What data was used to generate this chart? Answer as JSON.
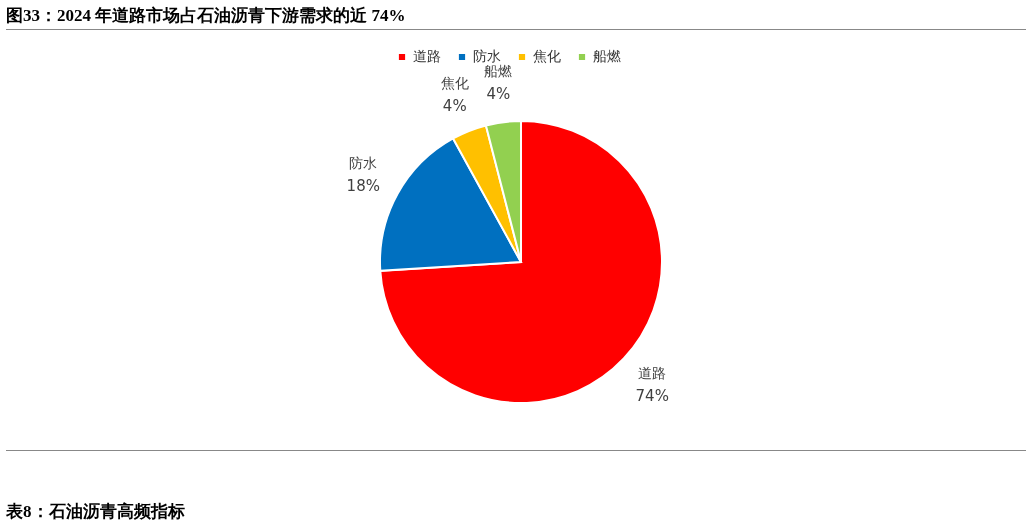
{
  "chart_data": {
    "type": "pie",
    "title": "图33：2024 年道路市场占石油沥青下游需求的近 74%",
    "categories": [
      "道路",
      "防水",
      "焦化",
      "船燃"
    ],
    "values": [
      74,
      18,
      4,
      4
    ],
    "colors": [
      "#ff0000",
      "#0070c0",
      "#ffc000",
      "#92d050"
    ],
    "value_labels": [
      "74%",
      "18%",
      "4%",
      "4%"
    ],
    "legend": "top",
    "annotations": [
      "表8：石油沥青高频指标"
    ]
  }
}
